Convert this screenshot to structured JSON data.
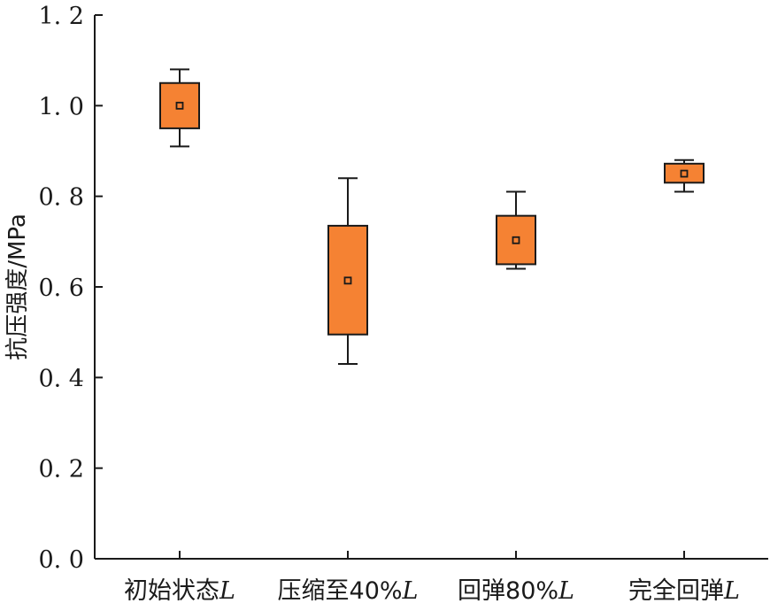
{
  "chart_data": {
    "type": "box",
    "title": "",
    "xlabel": "",
    "ylabel": "抗压强度/MPa",
    "ylim": [
      0.0,
      1.2
    ],
    "yticks": [
      0.0,
      0.2,
      0.4,
      0.6,
      0.8,
      1.0,
      1.2
    ],
    "ytick_labels": [
      "0. 0",
      "0. 2",
      "0. 4",
      "0. 6",
      "0. 8",
      "1. 0",
      "1. 2"
    ],
    "categories": [
      {
        "text": "初始状态",
        "suffix": "L"
      },
      {
        "text": "压缩至40%",
        "suffix": "L"
      },
      {
        "text": "回弹80%",
        "suffix": "L"
      },
      {
        "text": "完全回弹",
        "suffix": "L"
      }
    ],
    "boxes": [
      {
        "whisker_low": 0.91,
        "q1": 0.95,
        "mean": 1.0,
        "q3": 1.05,
        "whisker_high": 1.08
      },
      {
        "whisker_low": 0.43,
        "q1": 0.495,
        "mean": 0.614,
        "q3": 0.735,
        "whisker_high": 0.84
      },
      {
        "whisker_low": 0.64,
        "q1": 0.65,
        "mean": 0.703,
        "q3": 0.757,
        "whisker_high": 0.81
      },
      {
        "whisker_low": 0.81,
        "q1": 0.83,
        "mean": 0.85,
        "q3": 0.872,
        "whisker_high": 0.88
      }
    ],
    "colors": {
      "box_fill": "#F58233",
      "box_stroke": "#1a1a1a",
      "axis": "#1a1a1a"
    },
    "grid": false,
    "legend": "none"
  }
}
